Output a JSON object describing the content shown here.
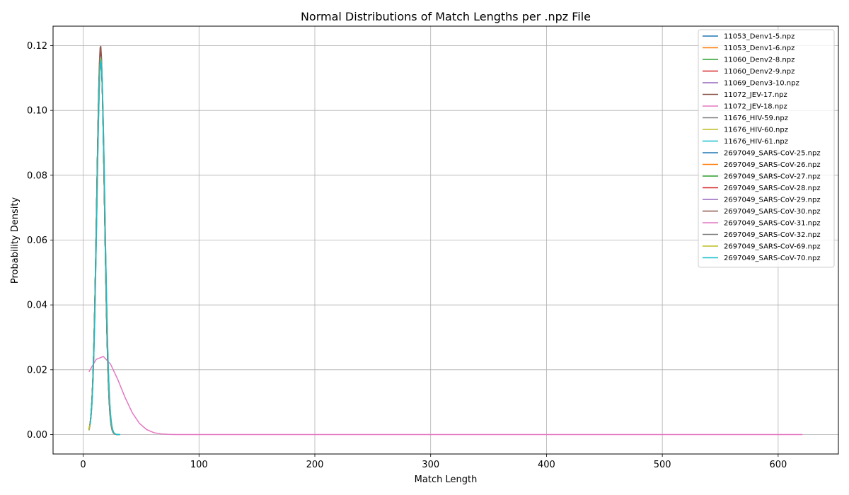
{
  "chart_data": {
    "type": "line",
    "title": "Normal Distributions of Match Lengths per .npz File",
    "xlabel": "Match Length",
    "ylabel": "Probability Density",
    "xlim": [
      -26,
      652
    ],
    "ylim": [
      -0.006,
      0.126
    ],
    "xticks": [
      0,
      100,
      200,
      300,
      400,
      500,
      600
    ],
    "yticks": [
      0.0,
      0.02,
      0.04,
      0.06,
      0.08,
      0.1,
      0.12
    ],
    "ytick_labels": [
      "0.00",
      "0.02",
      "0.04",
      "0.06",
      "0.08",
      "0.10",
      "0.12"
    ],
    "grid": true,
    "legend_position": "upper-right",
    "series": [
      {
        "name": "11053_Denv1-5.npz",
        "color": "#1f77b4",
        "mean": 15.0,
        "sd": 3.4,
        "xmin": 5,
        "xmax": 30
      },
      {
        "name": "11053_Denv1-6.npz",
        "color": "#ff7f0e",
        "mean": 15.2,
        "sd": 3.45,
        "xmin": 6,
        "xmax": 29
      },
      {
        "name": "11060_Denv2-8.npz",
        "color": "#2ca02c",
        "mean": 15.1,
        "sd": 3.42,
        "xmin": 5,
        "xmax": 30
      },
      {
        "name": "11060_Denv2-9.npz",
        "color": "#d62728",
        "mean": 15.0,
        "sd": 3.38,
        "xmin": 5,
        "xmax": 31
      },
      {
        "name": "11069_Denv3-10.npz",
        "color": "#9467bd",
        "mean": 15.1,
        "sd": 3.4,
        "xmin": 5,
        "xmax": 30
      },
      {
        "name": "11072_JEV-17.npz",
        "color": "#8c564b",
        "mean": 15.0,
        "sd": 3.32,
        "xmin": 5,
        "xmax": 30
      },
      {
        "name": "11072_JEV-18.npz",
        "color": "#e377c2",
        "mean": 16.0,
        "sd": 16.5,
        "xmin": 5,
        "xmax": 621
      },
      {
        "name": "11676_HIV-59.npz",
        "color": "#7f7f7f",
        "mean": 15.2,
        "sd": 3.45,
        "xmin": 5,
        "xmax": 31
      },
      {
        "name": "11676_HIV-60.npz",
        "color": "#bcbd22",
        "mean": 15.1,
        "sd": 3.42,
        "xmin": 5,
        "xmax": 30
      },
      {
        "name": "11676_HIV-61.npz",
        "color": "#17becf",
        "mean": 15.3,
        "sd": 3.45,
        "xmin": 5,
        "xmax": 32
      },
      {
        "name": "2697049_SARS-CoV-25.npz",
        "color": "#1f77b4",
        "mean": 15.0,
        "sd": 3.4,
        "xmin": 5,
        "xmax": 30
      },
      {
        "name": "2697049_SARS-CoV-26.npz",
        "color": "#ff7f0e",
        "mean": 15.1,
        "sd": 3.42,
        "xmin": 5,
        "xmax": 30
      },
      {
        "name": "2697049_SARS-CoV-27.npz",
        "color": "#2ca02c",
        "mean": 15.0,
        "sd": 3.41,
        "xmin": 5,
        "xmax": 30
      },
      {
        "name": "2697049_SARS-CoV-28.npz",
        "color": "#d62728",
        "mean": 15.0,
        "sd": 3.4,
        "xmin": 5,
        "xmax": 30
      },
      {
        "name": "2697049_SARS-CoV-29.npz",
        "color": "#9467bd",
        "mean": 15.1,
        "sd": 3.41,
        "xmin": 5,
        "xmax": 30
      },
      {
        "name": "2697049_SARS-CoV-30.npz",
        "color": "#8c564b",
        "mean": 15.0,
        "sd": 3.4,
        "xmin": 5,
        "xmax": 30
      },
      {
        "name": "2697049_SARS-CoV-31.npz",
        "color": "#e377c2",
        "mean": 15.1,
        "sd": 3.42,
        "xmin": 5,
        "xmax": 30
      },
      {
        "name": "2697049_SARS-CoV-32.npz",
        "color": "#7f7f7f",
        "mean": 15.0,
        "sd": 3.41,
        "xmin": 5,
        "xmax": 30
      },
      {
        "name": "2697049_SARS-CoV-69.npz",
        "color": "#bcbd22",
        "mean": 15.2,
        "sd": 3.43,
        "xmin": 5,
        "xmax": 31
      },
      {
        "name": "2697049_SARS-CoV-70.npz",
        "color": "#17becf",
        "mean": 15.3,
        "sd": 3.45,
        "xmin": 6,
        "xmax": 32
      }
    ]
  }
}
